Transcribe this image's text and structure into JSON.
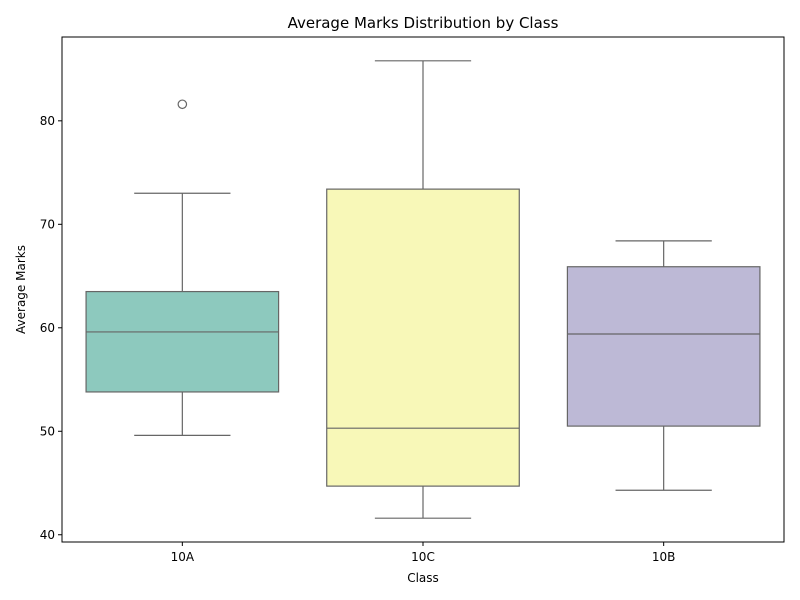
{
  "chart_data": {
    "type": "box",
    "title": "Average Marks Distribution by Class",
    "xlabel": "Class",
    "ylabel": "Average Marks",
    "ylim": [
      39.3,
      88.1
    ],
    "yticks": [
      40,
      50,
      60,
      70,
      80
    ],
    "grid": false,
    "categories": [
      "10A",
      "10C",
      "10B"
    ],
    "series": [
      {
        "category": "10A",
        "whisker_low": 49.6,
        "q1": 53.8,
        "median": 59.6,
        "q3": 63.5,
        "whisker_high": 73.0,
        "outliers": [
          81.6
        ],
        "color": "#8dc9be"
      },
      {
        "category": "10C",
        "whisker_low": 41.6,
        "q1": 44.7,
        "median": 50.3,
        "q3": 73.4,
        "whisker_high": 85.8,
        "outliers": [],
        "color": "#f8f8b8"
      },
      {
        "category": "10B",
        "whisker_low": 44.3,
        "q1": 50.5,
        "median": 59.4,
        "q3": 65.9,
        "whisker_high": 68.4,
        "outliers": [],
        "color": "#bdb9d6"
      }
    ]
  }
}
